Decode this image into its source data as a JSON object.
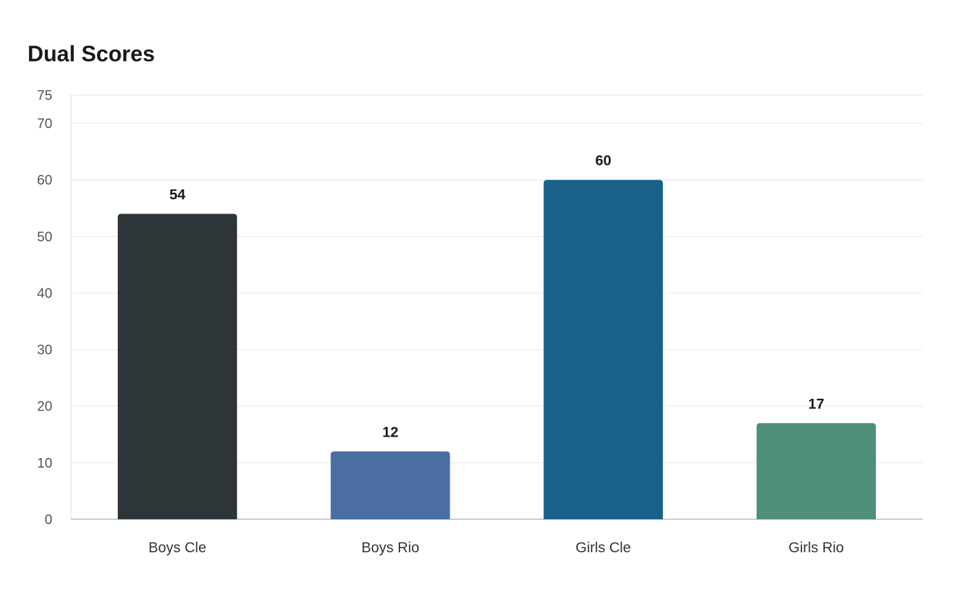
{
  "chart_data": {
    "type": "bar",
    "title": "Dual Scores",
    "xlabel": "",
    "ylabel": "",
    "categories": [
      "Boys Cle",
      "Boys Rio",
      "Girls Cle",
      "Girls Rio"
    ],
    "values": [
      54,
      12,
      60,
      17
    ],
    "colors": [
      "#2d3538",
      "#4a6ea3",
      "#186189",
      "#4e8e7a"
    ],
    "ylim": [
      0,
      75
    ],
    "yticks": [
      0,
      10,
      20,
      30,
      40,
      50,
      60,
      70,
      75
    ],
    "grid": true,
    "legend": "none"
  }
}
